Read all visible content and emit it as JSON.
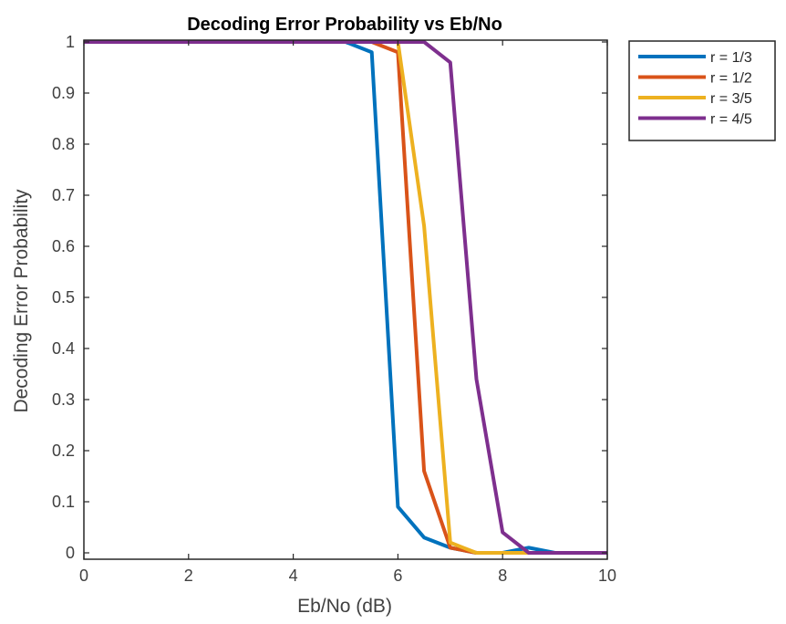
{
  "chart_data": {
    "type": "line",
    "title": "Decoding Error Probability vs Eb/No",
    "xlabel": "Eb/No (dB)",
    "ylabel": "Decoding Error Probability",
    "xlim": [
      0,
      10
    ],
    "ylim": [
      0,
      1
    ],
    "xticks": [
      0,
      2,
      4,
      6,
      8,
      10
    ],
    "yticks": [
      0,
      0.1,
      0.2,
      0.3,
      0.4,
      0.5,
      0.6,
      0.7,
      0.8,
      0.9,
      1
    ],
    "grid": false,
    "legend_position": "outside-top-right",
    "x": [
      0,
      0.5,
      1,
      1.5,
      2,
      2.5,
      3,
      3.5,
      4,
      4.5,
      5,
      5.5,
      6,
      6.5,
      7,
      7.5,
      8,
      8.5,
      9,
      9.5,
      10
    ],
    "series": [
      {
        "name": "r = 1/3",
        "color": "#0072BD",
        "values": [
          1,
          1,
          1,
          1,
          1,
          1,
          1,
          1,
          1,
          1,
          1,
          0.98,
          0.09,
          0.03,
          0.01,
          0.0,
          0.0,
          0.01,
          0.0,
          0.0,
          0.0
        ]
      },
      {
        "name": "r = 1/2",
        "color": "#D95319",
        "values": [
          1,
          1,
          1,
          1,
          1,
          1,
          1,
          1,
          1,
          1,
          1,
          1,
          0.98,
          0.16,
          0.01,
          0.0,
          0.0,
          0.0,
          0.0,
          0.0,
          0.0
        ]
      },
      {
        "name": "r = 3/5",
        "color": "#EDB120",
        "values": [
          1,
          1,
          1,
          1,
          1,
          1,
          1,
          1,
          1,
          1,
          1,
          1,
          1,
          0.64,
          0.02,
          0.0,
          0.0,
          0.0,
          0.0,
          0.0,
          0.0
        ]
      },
      {
        "name": "r = 4/5",
        "color": "#7E2F8E",
        "values": [
          1,
          1,
          1,
          1,
          1,
          1,
          1,
          1,
          1,
          1,
          1,
          1,
          1,
          1,
          0.96,
          0.34,
          0.04,
          0.0,
          0.0,
          0.0,
          0.0
        ]
      }
    ]
  }
}
